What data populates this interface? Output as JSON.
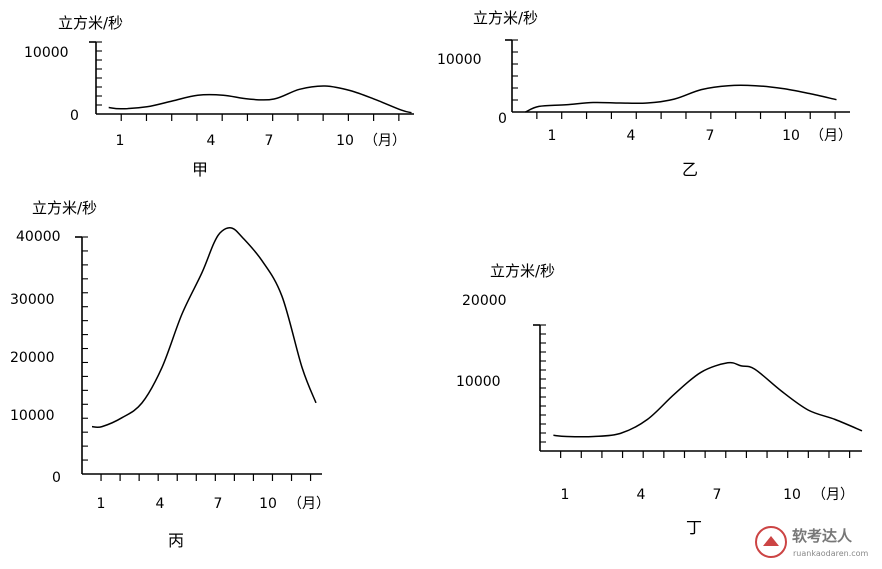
{
  "chart_data": [
    {
      "type": "line",
      "caption": "甲",
      "ylabel": "立方米/秒",
      "x_ticks": [
        "1",
        "4",
        "7",
        "10"
      ],
      "x_unit": "（月）",
      "y_tick_labels": [
        "10000",
        "0"
      ],
      "ylim": [
        0,
        10000
      ],
      "xlim": [
        0,
        12.5
      ],
      "x": [
        0.5,
        1,
        2,
        3,
        4,
        5,
        6,
        7,
        8,
        9,
        10,
        11,
        12,
        12.4
      ],
      "values": [
        1000,
        800,
        1100,
        2000,
        2900,
        2900,
        2300,
        2300,
        3800,
        4300,
        3600,
        2200,
        600,
        200
      ]
    },
    {
      "type": "line",
      "caption": "乙",
      "ylabel": "立方米/秒",
      "x_ticks": [
        "1",
        "4",
        "7",
        "10"
      ],
      "x_unit": "（月）",
      "y_tick_labels": [
        "10000",
        "0"
      ],
      "ylim": [
        0,
        10000
      ],
      "xlim": [
        0,
        12.5
      ],
      "x": [
        0.5,
        1,
        2,
        3,
        4,
        5,
        6,
        7,
        8,
        9,
        10,
        11,
        12
      ],
      "values": [
        0,
        1000,
        1300,
        1700,
        1600,
        1600,
        2300,
        4000,
        4700,
        4700,
        4200,
        3300,
        2200
      ]
    },
    {
      "type": "line",
      "caption": "丙",
      "ylabel": "立方米/秒",
      "x_ticks": [
        "1",
        "4",
        "7",
        "10"
      ],
      "x_unit": "（月）",
      "y_tick_labels": [
        "40000",
        "30000",
        "20000",
        "10000",
        "0"
      ],
      "ylim": [
        0,
        40000
      ],
      "xlim": [
        0,
        12
      ],
      "x": [
        0.5,
        1,
        2,
        3,
        4,
        5,
        6,
        6.6,
        7,
        7.5,
        8,
        9,
        10,
        11,
        11.7
      ],
      "values": [
        8000,
        8000,
        9500,
        12000,
        18000,
        27000,
        34000,
        39000,
        41000,
        41500,
        40000,
        36000,
        30000,
        18000,
        12000
      ]
    },
    {
      "type": "line",
      "caption": "丁",
      "ylabel": "立方米/秒",
      "x_ticks": [
        "1",
        "4",
        "7",
        "10"
      ],
      "x_unit": "（月）",
      "y_tick_labels": [
        "20000",
        "10000"
      ],
      "ylim": [
        0,
        20000
      ],
      "xlim": [
        0,
        12
      ],
      "x": [
        0.5,
        1,
        2,
        3,
        4,
        5,
        6,
        7,
        7.5,
        8,
        9,
        10,
        11,
        12
      ],
      "values": [
        2500,
        2300,
        2300,
        2800,
        5000,
        9000,
        12500,
        14000,
        13500,
        13000,
        9500,
        6500,
        5000,
        3200
      ]
    }
  ],
  "watermark": {
    "name": "软考达人",
    "url": "ruankaodaren.com"
  }
}
